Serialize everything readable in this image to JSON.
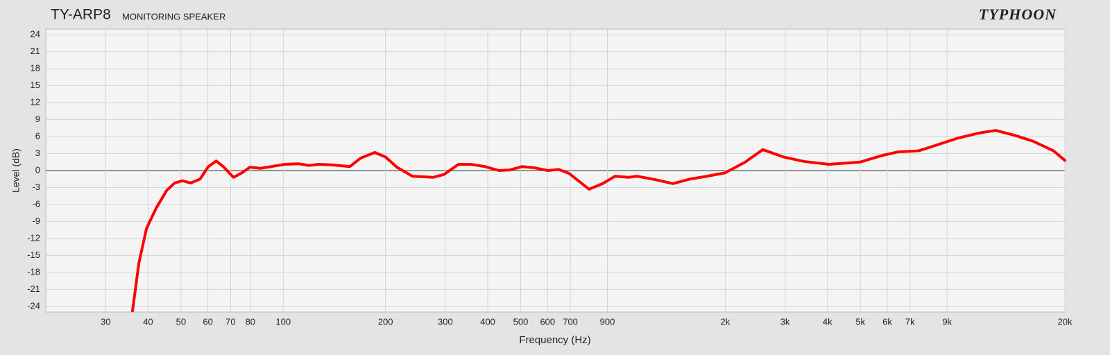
{
  "chart_data": {
    "type": "line",
    "title": "TY-ARP8",
    "subtitle": "MONITORING SPEAKER",
    "brand": "TYPHOON",
    "x_label": "Frequency (Hz)",
    "y_label": "Level (dB)",
    "xscale": "log",
    "grid": true,
    "color": "#ff0000",
    "xlim": [
      20,
      20000
    ],
    "ylim": [
      -25,
      25
    ],
    "yticks": [
      24,
      21,
      18,
      15,
      12,
      9,
      6,
      3,
      0,
      -3,
      -6,
      -9,
      -12,
      -15,
      -18,
      -21,
      -24
    ],
    "xticks": [
      30,
      40,
      50,
      60,
      70,
      80,
      100,
      200,
      300,
      400,
      500,
      600,
      700,
      900,
      {
        "value": 2000,
        "label": "2k"
      },
      {
        "value": 3000,
        "label": "3k"
      },
      {
        "value": 4000,
        "label": "4k"
      },
      {
        "value": 5000,
        "label": "5k"
      },
      {
        "value": 6000,
        "label": "6k"
      },
      {
        "value": 7000,
        "label": "7k"
      },
      {
        "value": 9000,
        "label": "9k"
      },
      {
        "value": 20000,
        "label": "20k"
      }
    ],
    "x": [
      36,
      37.6,
      39.6,
      42.3,
      45.4,
      47.9,
      50.5,
      53.4,
      56.9,
      60.2,
      63.5,
      66.6,
      71.4,
      75.6,
      79.8,
      85.6,
      91.9,
      101,
      111,
      119,
      127,
      140,
      157,
      169,
      186,
      200,
      216,
      240,
      276,
      297,
      328,
      357,
      393,
      432,
      464,
      504,
      548,
      601,
      647,
      694,
      795,
      872,
      948,
      1041,
      1100,
      1244,
      1403,
      1577,
      1770,
      2000,
      2290,
      2580,
      2970,
      3420,
      4040,
      4990,
      5740,
      6450,
      7430,
      8380,
      9640,
      11100,
      12500,
      14300,
      16100,
      18500,
      20000
    ],
    "values": [
      -24.8,
      -16.3,
      -10.2,
      -6.6,
      -3.5,
      -2.2,
      -1.8,
      -2.2,
      -1.5,
      0.7,
      1.7,
      0.7,
      -1.2,
      -0.4,
      0.6,
      0.4,
      0.7,
      1.1,
      1.2,
      0.9,
      1.1,
      1.0,
      0.7,
      2.2,
      3.2,
      2.4,
      0.6,
      -1.0,
      -1.2,
      -0.7,
      1.1,
      1.1,
      0.7,
      0,
      0.1,
      0.7,
      0.5,
      0,
      0.2,
      -0.5,
      -3.3,
      -2.3,
      -1.0,
      -1.2,
      -1.0,
      -1.6,
      -2.3,
      -1.5,
      -1.0,
      -0.4,
      1.5,
      3.7,
      2.4,
      1.6,
      1.1,
      1.5,
      2.6,
      3.3,
      3.5,
      4.5,
      5.7,
      6.6,
      7.1,
      6.2,
      5.2,
      3.5,
      1.8
    ]
  }
}
